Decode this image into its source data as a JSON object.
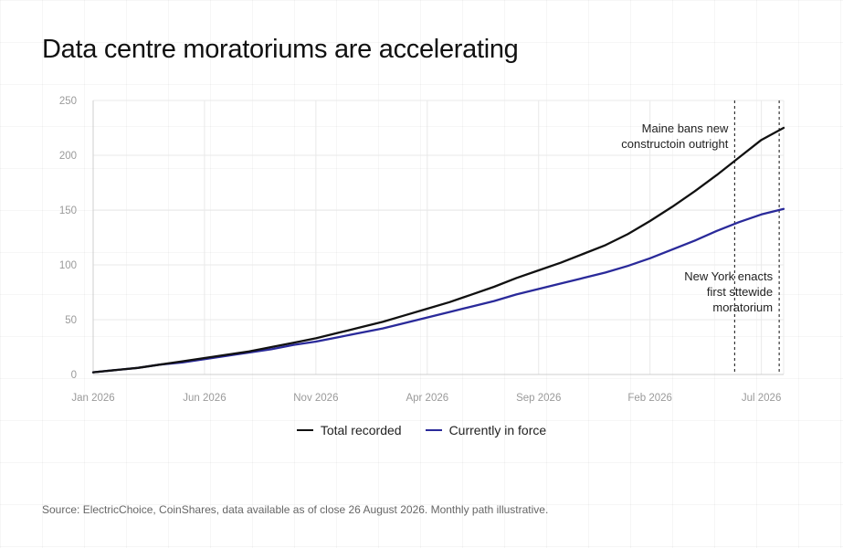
{
  "title": "Data centre moratoriums are accelerating",
  "source": "Source: ElectricChoice, CoinShares, data available as of close 26 August 2026. Monthly path illustrative.",
  "colors": {
    "total": "#111111",
    "in_force": "#2a2a9a",
    "grid": "#e9e9e9",
    "axis": "#cfcfcf",
    "tick_text": "#9a9a9a"
  },
  "chart_data": {
    "type": "line",
    "grid": true,
    "legend_position": "bottom-center",
    "xlabel": "",
    "ylabel": "",
    "ylim": [
      0,
      250
    ],
    "yticks": [
      0,
      50,
      100,
      150,
      200,
      250
    ],
    "x_tick_labels": [
      {
        "label": "Jan 2026",
        "index": 0
      },
      {
        "label": "Jun 2026",
        "index": 5
      },
      {
        "label": "Nov 2026",
        "index": 10
      },
      {
        "label": "Apr 2026",
        "index": 15
      },
      {
        "label": "Sep 2026",
        "index": 20
      },
      {
        "label": "Feb 2026",
        "index": 25
      },
      {
        "label": "Jul 2026",
        "index": 30
      }
    ],
    "x_count": 32,
    "series": [
      {
        "name": "Total recorded",
        "color": "#111111",
        "values": [
          2,
          4,
          6,
          9,
          12,
          15,
          18,
          21,
          25,
          29,
          33,
          38,
          43,
          48,
          54,
          60,
          66,
          73,
          80,
          88,
          95,
          102,
          110,
          118,
          128,
          140,
          153,
          167,
          182,
          198,
          214,
          225
        ]
      },
      {
        "name": "Currently in force",
        "color": "#2a2a9a",
        "values": [
          2,
          4,
          6,
          9,
          11,
          14,
          17,
          20,
          23,
          27,
          30,
          34,
          38,
          42,
          47,
          52,
          57,
          62,
          67,
          73,
          78,
          83,
          88,
          93,
          99,
          106,
          114,
          122,
          131,
          139,
          146,
          151
        ]
      }
    ],
    "annotations": [
      {
        "lines": [
          "Maine bans new",
          "constructoin outright"
        ],
        "x_index": 28.8
      },
      {
        "lines": [
          "New York enacts",
          "first sttewide",
          "moratorium"
        ],
        "x_index": 30.8
      }
    ]
  },
  "legend": [
    {
      "label": "Total recorded",
      "color": "#111111"
    },
    {
      "label": "Currently in force",
      "color": "#2a2a9a"
    }
  ]
}
